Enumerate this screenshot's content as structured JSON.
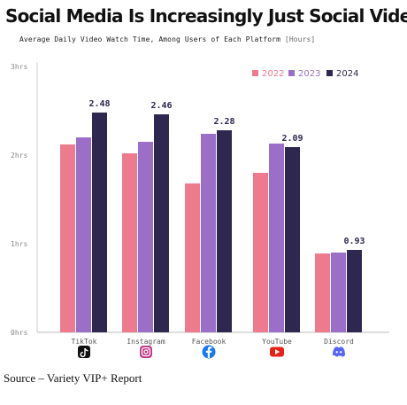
{
  "title": "Social Media Is Increasingly Just Social Video",
  "subtitle": "Average Daily Video Watch Time, Among Users of Each Platform",
  "subtitle_unit": "[Hours]",
  "source": "Source – Variety VIP+ Report",
  "colors": {
    "2022": "#ee7a8e",
    "2023": "#9b6fc7",
    "2024": "#2e2850",
    "axis": "#888888",
    "grid": "#e6e6e6"
  },
  "chart_data": {
    "type": "bar",
    "categories": [
      "TikTok",
      "Instagram",
      "Facebook",
      "YouTube",
      "Discord"
    ],
    "category_icons": [
      "tiktok-icon",
      "instagram-icon",
      "facebook-icon",
      "youtube-icon",
      "discord-icon"
    ],
    "series": [
      {
        "name": "2022",
        "values": [
          2.12,
          2.02,
          1.68,
          1.8,
          0.89
        ]
      },
      {
        "name": "2023",
        "values": [
          2.2,
          2.15,
          2.24,
          2.13,
          0.9
        ]
      },
      {
        "name": "2024",
        "values": [
          2.48,
          2.46,
          2.28,
          2.09,
          0.93
        ]
      }
    ],
    "data_labels": {
      "series": "2024",
      "values": [
        "2.48",
        "2.46",
        "2.28",
        "2.09",
        "0.93"
      ]
    },
    "yticks": [
      "0hrs",
      "1hrs",
      "2hrs",
      "3hrs"
    ],
    "ylim": [
      0,
      3
    ],
    "legend_position": "top-right",
    "grid": false
  }
}
